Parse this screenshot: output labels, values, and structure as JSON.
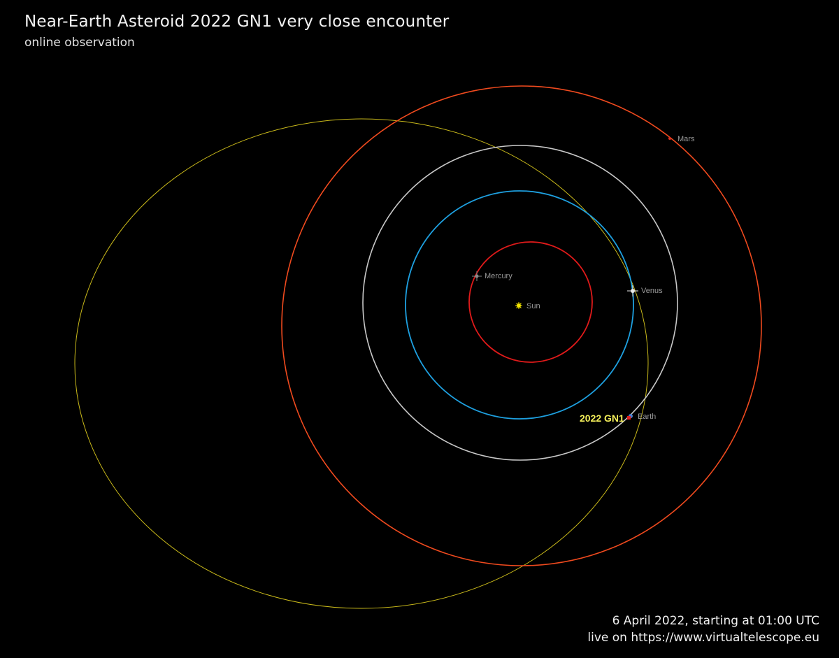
{
  "header": {
    "title": "Near-Earth Asteroid 2022 GN1 very close encounter",
    "subtitle": "online observation"
  },
  "footer": {
    "date_line": "6 April 2022, starting at 01:00 UTC",
    "url_line": "live on https://www.virtualtelescope.eu"
  },
  "bodies": {
    "sun": {
      "label": "Sun",
      "color": "#f4e600"
    },
    "mercury": {
      "label": "Mercury",
      "color": "#8a8a8a",
      "orbit_color": "#e01a1a"
    },
    "venus": {
      "label": "Venus",
      "color": "#e8e8e8",
      "orbit_color": "#1ea0e0"
    },
    "earth": {
      "label": "Earth",
      "color": "#4a7fd0",
      "orbit_color": "#c8c8c8"
    },
    "mars": {
      "label": "Mars",
      "color": "#e03020",
      "orbit_color": "#f04a1e"
    },
    "asteroid": {
      "label": "2022 GN1",
      "color": "#f4ef5a",
      "orbit_color": "#c9b91a"
    }
  },
  "colors": {
    "background": "#000000",
    "title_text": "#f2f2f2",
    "planet_label": "#9a9a9a"
  }
}
